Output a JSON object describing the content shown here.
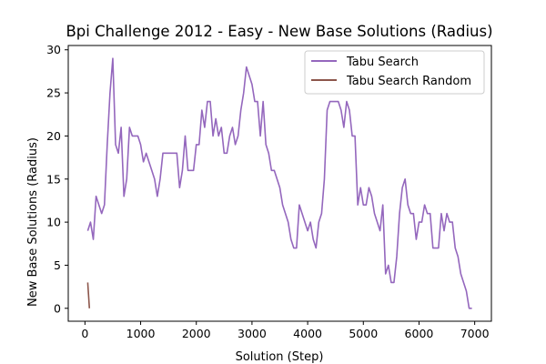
{
  "chart_data": {
    "type": "line",
    "title": "Bpi Challenge 2012 - Easy - New Base Solutions (Radius)",
    "xlabel": "Solution (Step)",
    "ylabel": "New Base Solutions (Radius)",
    "xlim": [
      -300,
      7300
    ],
    "ylim": [
      -1.5,
      30.5
    ],
    "xticks": [
      0,
      1000,
      2000,
      3000,
      4000,
      5000,
      6000,
      7000
    ],
    "xtick_labels": [
      "0",
      "1000",
      "2000",
      "3000",
      "4000",
      "5000",
      "6000",
      "7000"
    ],
    "yticks": [
      0,
      5,
      10,
      15,
      20,
      25,
      30
    ],
    "ytick_labels": [
      "0",
      "5",
      "10",
      "15",
      "20",
      "25",
      "30"
    ],
    "grid": false,
    "legend_position": "upper right",
    "series": [
      {
        "name": "Tabu Search",
        "color": "#9467bd",
        "points": [
          [
            50,
            9
          ],
          [
            100,
            10
          ],
          [
            150,
            8
          ],
          [
            200,
            13
          ],
          [
            250,
            12
          ],
          [
            300,
            11
          ],
          [
            350,
            12
          ],
          [
            400,
            19
          ],
          [
            450,
            25
          ],
          [
            500,
            29
          ],
          [
            550,
            19
          ],
          [
            600,
            18
          ],
          [
            650,
            21
          ],
          [
            700,
            13
          ],
          [
            750,
            15
          ],
          [
            800,
            21
          ],
          [
            850,
            20
          ],
          [
            900,
            20
          ],
          [
            950,
            20
          ],
          [
            1000,
            19
          ],
          [
            1050,
            17
          ],
          [
            1100,
            18
          ],
          [
            1150,
            17
          ],
          [
            1200,
            16
          ],
          [
            1250,
            15
          ],
          [
            1300,
            13
          ],
          [
            1350,
            15
          ],
          [
            1400,
            18
          ],
          [
            1450,
            18
          ],
          [
            1500,
            18
          ],
          [
            1550,
            18
          ],
          [
            1600,
            18
          ],
          [
            1650,
            18
          ],
          [
            1700,
            14
          ],
          [
            1750,
            16
          ],
          [
            1800,
            20
          ],
          [
            1850,
            16
          ],
          [
            1900,
            16
          ],
          [
            1950,
            16
          ],
          [
            2000,
            19
          ],
          [
            2050,
            19
          ],
          [
            2100,
            23
          ],
          [
            2150,
            21
          ],
          [
            2200,
            24
          ],
          [
            2250,
            24
          ],
          [
            2300,
            20
          ],
          [
            2350,
            22
          ],
          [
            2400,
            20
          ],
          [
            2450,
            21
          ],
          [
            2500,
            18
          ],
          [
            2550,
            18
          ],
          [
            2600,
            20
          ],
          [
            2650,
            21
          ],
          [
            2700,
            19
          ],
          [
            2750,
            20
          ],
          [
            2800,
            23
          ],
          [
            2850,
            25
          ],
          [
            2900,
            28
          ],
          [
            2950,
            27
          ],
          [
            3000,
            26
          ],
          [
            3050,
            24
          ],
          [
            3100,
            24
          ],
          [
            3150,
            20
          ],
          [
            3200,
            24
          ],
          [
            3250,
            19
          ],
          [
            3300,
            18
          ],
          [
            3350,
            16
          ],
          [
            3400,
            16
          ],
          [
            3450,
            15
          ],
          [
            3500,
            14
          ],
          [
            3550,
            12
          ],
          [
            3600,
            11
          ],
          [
            3650,
            10
          ],
          [
            3700,
            8
          ],
          [
            3750,
            7
          ],
          [
            3800,
            7
          ],
          [
            3850,
            12
          ],
          [
            3900,
            11
          ],
          [
            3950,
            10
          ],
          [
            4000,
            9
          ],
          [
            4050,
            10
          ],
          [
            4100,
            8
          ],
          [
            4150,
            7
          ],
          [
            4200,
            10
          ],
          [
            4250,
            11
          ],
          [
            4300,
            15
          ],
          [
            4350,
            23
          ],
          [
            4400,
            24
          ],
          [
            4450,
            24
          ],
          [
            4500,
            24
          ],
          [
            4550,
            24
          ],
          [
            4600,
            23
          ],
          [
            4650,
            21
          ],
          [
            4700,
            24
          ],
          [
            4750,
            23
          ],
          [
            4800,
            20
          ],
          [
            4850,
            20
          ],
          [
            4900,
            12
          ],
          [
            4950,
            14
          ],
          [
            5000,
            12
          ],
          [
            5050,
            12
          ],
          [
            5100,
            14
          ],
          [
            5150,
            13
          ],
          [
            5200,
            11
          ],
          [
            5250,
            10
          ],
          [
            5300,
            9
          ],
          [
            5350,
            12
          ],
          [
            5400,
            4
          ],
          [
            5450,
            5
          ],
          [
            5500,
            3
          ],
          [
            5550,
            3
          ],
          [
            5600,
            6
          ],
          [
            5650,
            11
          ],
          [
            5700,
            14
          ],
          [
            5750,
            15
          ],
          [
            5800,
            12
          ],
          [
            5850,
            11
          ],
          [
            5900,
            11
          ],
          [
            5950,
            8
          ],
          [
            6000,
            10
          ],
          [
            6050,
            10
          ],
          [
            6100,
            12
          ],
          [
            6150,
            11
          ],
          [
            6200,
            11
          ],
          [
            6250,
            7
          ],
          [
            6300,
            7
          ],
          [
            6350,
            7
          ],
          [
            6400,
            11
          ],
          [
            6450,
            9
          ],
          [
            6500,
            11
          ],
          [
            6550,
            10
          ],
          [
            6600,
            10
          ],
          [
            6650,
            7
          ],
          [
            6700,
            6
          ],
          [
            6750,
            4
          ],
          [
            6800,
            3
          ],
          [
            6850,
            2
          ],
          [
            6900,
            0
          ],
          [
            6950,
            0
          ]
        ]
      },
      {
        "name": "Tabu Search Random",
        "color": "#8c564b",
        "points": [
          [
            50,
            3
          ],
          [
            80,
            0
          ]
        ]
      }
    ]
  }
}
